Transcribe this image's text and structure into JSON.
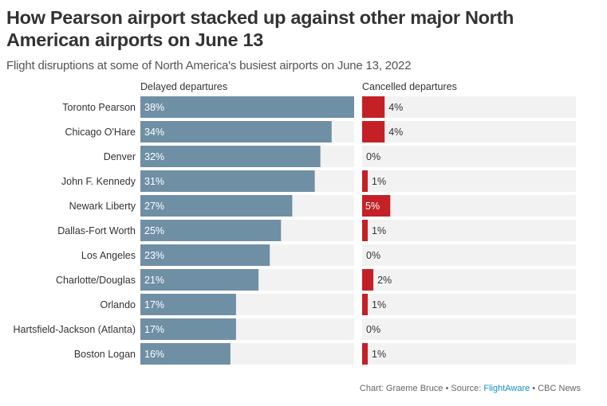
{
  "chart_data": [
    {
      "type": "bar",
      "orientation": "horizontal",
      "title": "How Pearson airport stacked up against other major North American airports on June 13",
      "subtitle": "Flight disruptions at some of North America's busiest airports on June 13, 2022",
      "panel": "Delayed departures",
      "categories": [
        "Toronto Pearson",
        "Chicago O'Hare",
        "Denver",
        "John F. Kennedy",
        "Newark Liberty",
        "Dallas-Fort Worth",
        "Los Angeles",
        "Charlotte/Douglas",
        "Orlando",
        "Hartsfield-Jackson (Atlanta)",
        "Boston Logan"
      ],
      "values": [
        38,
        34,
        32,
        31,
        27,
        25,
        23,
        21,
        17,
        17,
        16
      ],
      "labels": [
        "38%",
        "34%",
        "32%",
        "31%",
        "27%",
        "25%",
        "23%",
        "21%",
        "17%",
        "17%",
        "16%"
      ],
      "unit": "%",
      "xlim": [
        0,
        38
      ],
      "color": "#6f8fa5",
      "grid": false
    },
    {
      "type": "bar",
      "orientation": "horizontal",
      "panel": "Cancelled departures",
      "categories": [
        "Toronto Pearson",
        "Chicago O'Hare",
        "Denver",
        "John F. Kennedy",
        "Newark Liberty",
        "Dallas-Fort Worth",
        "Los Angeles",
        "Charlotte/Douglas",
        "Orlando",
        "Hartsfield-Jackson (Atlanta)",
        "Boston Logan"
      ],
      "values": [
        4,
        4,
        0,
        1,
        5,
        1,
        0,
        2,
        1,
        0,
        1
      ],
      "labels": [
        "4%",
        "4%",
        "0%",
        "1%",
        "5%",
        "1%",
        "0%",
        "2%",
        "1%",
        "0%",
        "1%"
      ],
      "unit": "%",
      "xlim": [
        0,
        38
      ],
      "color": "#c42127",
      "grid": false
    }
  ],
  "header": {
    "title": "How Pearson airport stacked up against other major North American airports on June 13",
    "subtitle": "Flight disruptions at some of North America's busiest airports on June 13, 2022"
  },
  "panels": {
    "delayed_label": "Delayed departures",
    "cancelled_label": "Cancelled departures"
  },
  "colors": {
    "delayed_bar": "#6f8fa5",
    "cancelled_bar": "#c42127",
    "track": "#f2f2f2"
  },
  "footer": {
    "credit": "Chart: Graeme Bruce • Source: ",
    "source_link": "FlightAware",
    "publisher": " • CBC News"
  }
}
